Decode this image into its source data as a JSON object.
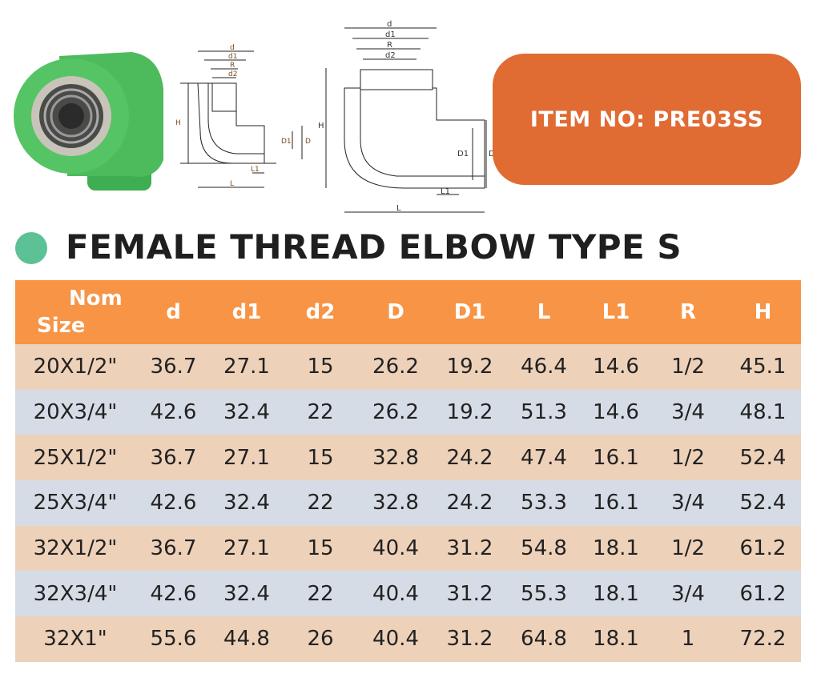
{
  "item_label": "ITEM NO: PRE03SS",
  "title": "FEMALE THREAD ELBOW TYPE S",
  "colors": {
    "header": "#f79446",
    "row_odd": "#eed1b9",
    "row_even": "#d6dce6",
    "item_box": "#e06b33",
    "bullet": "#5cc194"
  },
  "diagram_labels": {
    "d": "d",
    "d1": "d1",
    "R": "R",
    "d2": "d2",
    "H": "H",
    "D1": "D1",
    "D": "D",
    "L1": "L1",
    "L": "L"
  },
  "table": {
    "headers": [
      "Nom\nSize",
      "d",
      "d1",
      "d2",
      "D",
      "D1",
      "L",
      "L1",
      "R",
      "H"
    ],
    "header_nom_line1": "Nom",
    "header_nom_line2": "Size",
    "rows": [
      [
        "20X1/2\"",
        "36.7",
        "27.1",
        "15",
        "26.2",
        "19.2",
        "46.4",
        "14.6",
        "1/2",
        "45.1"
      ],
      [
        "20X3/4\"",
        "42.6",
        "32.4",
        "22",
        "26.2",
        "19.2",
        "51.3",
        "14.6",
        "3/4",
        "48.1"
      ],
      [
        "25X1/2\"",
        "36.7",
        "27.1",
        "15",
        "32.8",
        "24.2",
        "47.4",
        "16.1",
        "1/2",
        "52.4"
      ],
      [
        "25X3/4\"",
        "42.6",
        "32.4",
        "22",
        "32.8",
        "24.2",
        "53.3",
        "16.1",
        "3/4",
        "52.4"
      ],
      [
        "32X1/2\"",
        "36.7",
        "27.1",
        "15",
        "40.4",
        "31.2",
        "54.8",
        "18.1",
        "1/2",
        "61.2"
      ],
      [
        "32X3/4\"",
        "42.6",
        "32.4",
        "22",
        "40.4",
        "31.2",
        "55.3",
        "18.1",
        "3/4",
        "61.2"
      ],
      [
        "32X1\"",
        "55.6",
        "44.8",
        "26",
        "40.4",
        "31.2",
        "64.8",
        "18.1",
        "1",
        "72.2"
      ]
    ]
  }
}
